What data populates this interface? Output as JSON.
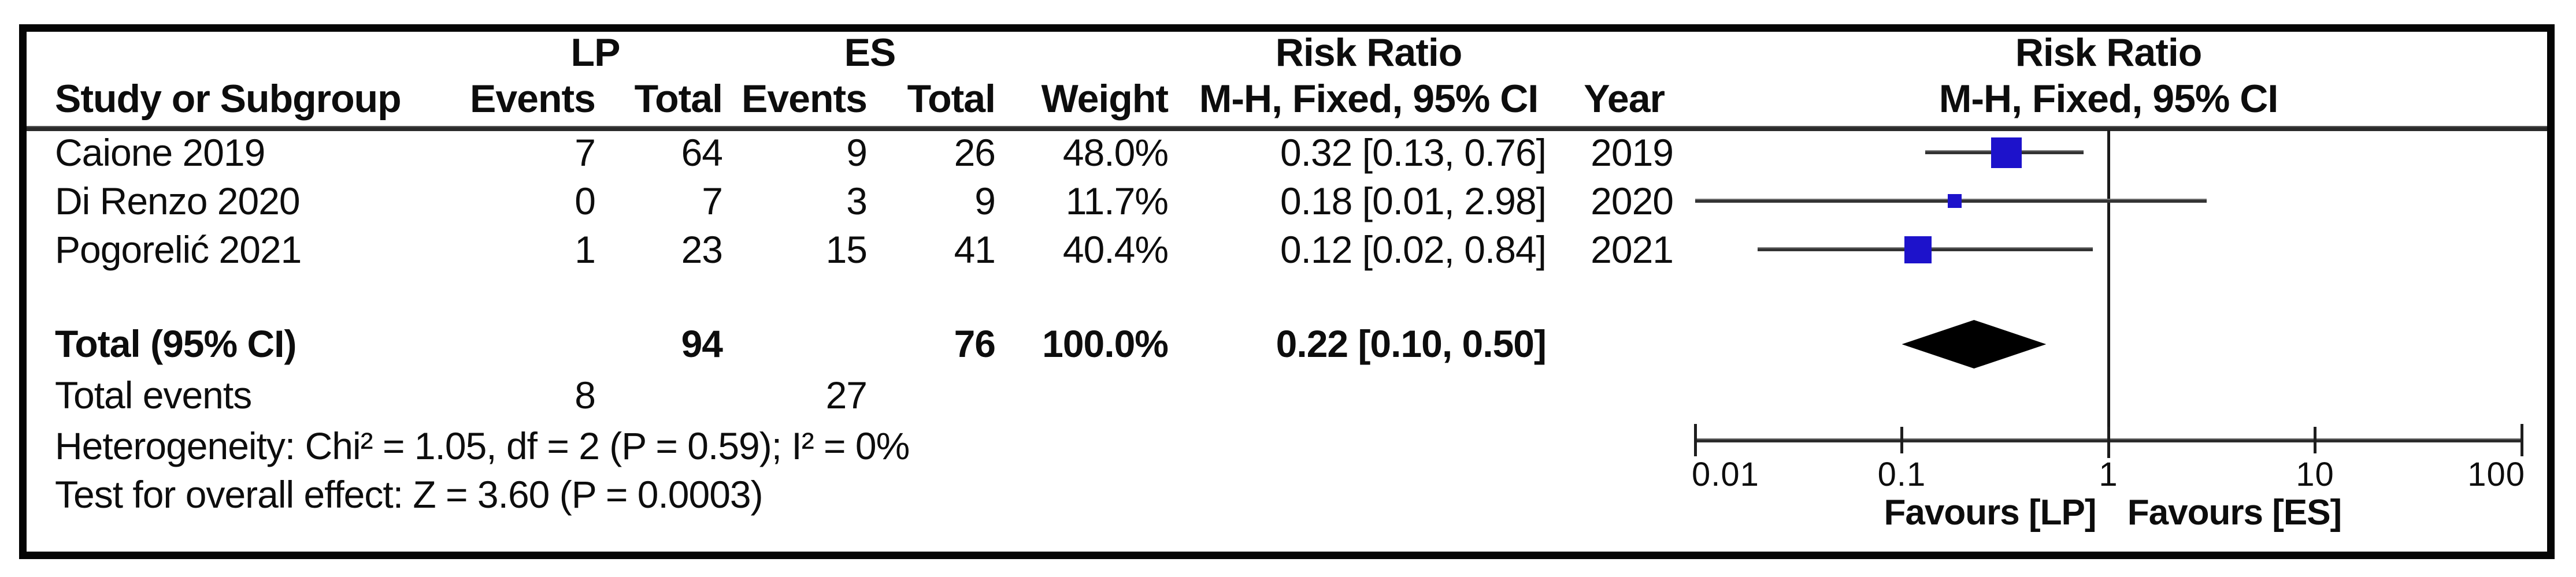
{
  "header": {
    "group1": "LP",
    "group2": "ES",
    "risk_ratio_table": "Risk Ratio",
    "risk_ratio_plot": "Risk Ratio",
    "study": "Study or Subgroup",
    "events1": "Events",
    "total1": "Total",
    "events2": "Events",
    "total2": "Total",
    "weight": "Weight",
    "mh_table": "M-H, Fixed, 95% CI",
    "year": "Year",
    "mh_plot": "M-H, Fixed, 95% CI"
  },
  "rows": [
    {
      "study": "Caione 2019",
      "events1": "7",
      "total1": "64",
      "events2": "9",
      "total2": "26",
      "weight": "48.0%",
      "ci": "0.32 [0.13, 0.76]",
      "year": "2019"
    },
    {
      "study": "Di Renzo 2020",
      "events1": "0",
      "total1": "7",
      "events2": "3",
      "total2": "9",
      "weight": "11.7%",
      "ci": "0.18 [0.01, 2.98]",
      "year": "2020"
    },
    {
      "study": "Pogorelić 2021",
      "events1": "1",
      "total1": "23",
      "events2": "15",
      "total2": "41",
      "weight": "40.4%",
      "ci": "0.12 [0.02, 0.84]",
      "year": "2021"
    }
  ],
  "total_row": {
    "label": "Total (95% CI)",
    "total1": "94",
    "total2": "76",
    "weight": "100.0%",
    "ci": "0.22 [0.10, 0.50]"
  },
  "total_events_row": {
    "label": "Total events",
    "events1": "8",
    "events2": "27"
  },
  "footnotes": {
    "heterogeneity": "Heterogeneity: Chi² = 1.05, df = 2 (P = 0.59); I² = 0%",
    "overall_effect": "Test for overall effect: Z = 3.60 (P = 0.0003)"
  },
  "axis": {
    "tick_labels": [
      "0.01",
      "0.1",
      "1",
      "10",
      "100"
    ],
    "favours_left": "Favours [LP]",
    "favours_right": "Favours [ES]"
  },
  "chart_data": {
    "type": "forest",
    "effect_measure": "Risk Ratio",
    "method": "M-H, Fixed, 95% CI",
    "x_scale": "log10",
    "x_ticks": [
      0.01,
      0.1,
      1,
      10,
      100
    ],
    "xlim": [
      0.01,
      100
    ],
    "null_line": 1,
    "studies": [
      {
        "name": "Caione 2019",
        "rr": 0.32,
        "ci_low": 0.13,
        "ci_high": 0.76,
        "weight_pct": 48.0,
        "year": 2019
      },
      {
        "name": "Di Renzo 2020",
        "rr": 0.18,
        "ci_low": 0.01,
        "ci_high": 2.98,
        "weight_pct": 11.7,
        "year": 2020
      },
      {
        "name": "Pogorelić 2021",
        "rr": 0.12,
        "ci_low": 0.02,
        "ci_high": 0.84,
        "weight_pct": 40.4,
        "year": 2021
      }
    ],
    "total": {
      "rr": 0.22,
      "ci_low": 0.1,
      "ci_high": 0.5,
      "weight_pct": 100.0
    }
  },
  "colors": {
    "square_blue": "#1d12cb",
    "ci_line": "#333333",
    "diamond": "#000000",
    "frame": "#050505"
  }
}
